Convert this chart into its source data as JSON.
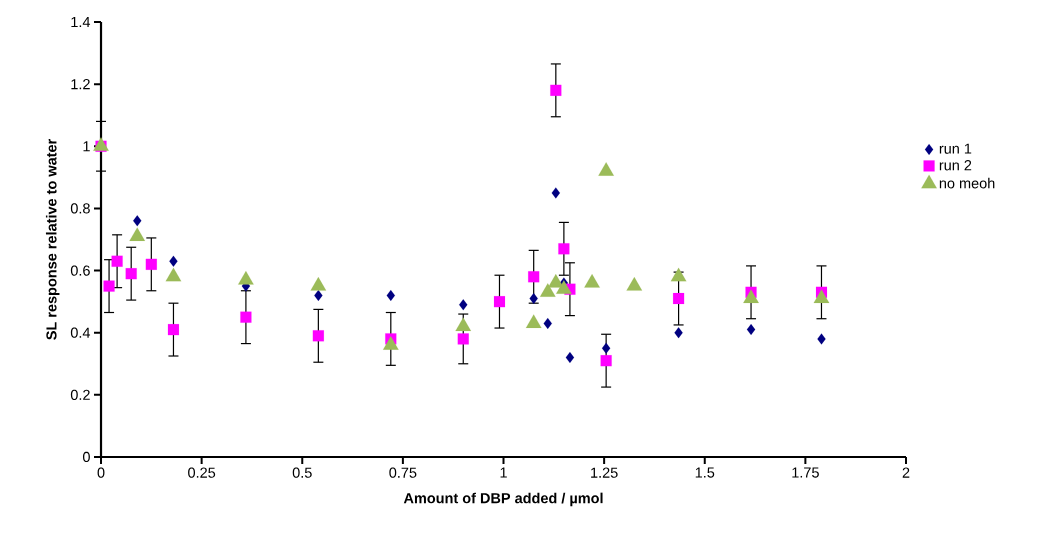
{
  "chart_data": {
    "type": "scatter",
    "xlabel": "Amount of DBP added / µmol",
    "ylabel": "SL response relative to water",
    "xlim": [
      0,
      2
    ],
    "xticks": [
      0,
      0.25,
      0.5,
      0.75,
      1,
      1.25,
      1.5,
      1.75,
      2
    ],
    "ylim": [
      0,
      1.4
    ],
    "yticks": [
      0,
      0.2,
      0.4,
      0.6,
      0.8,
      1,
      1.2,
      1.4
    ],
    "grid": false,
    "legend": "right",
    "series": [
      {
        "name": "run 1",
        "color": "#000080",
        "marker": "diamond",
        "x": [
          0.09,
          0.18,
          0.36,
          0.54,
          0.72,
          0.9,
          1.075,
          1.11,
          1.13,
          1.15,
          1.165,
          1.255,
          1.435,
          1.615,
          1.79
        ],
        "values": [
          0.76,
          0.63,
          0.55,
          0.52,
          0.52,
          0.49,
          0.51,
          0.43,
          0.85,
          0.56,
          0.32,
          0.35,
          0.4,
          0.41,
          0.38
        ]
      },
      {
        "name": "run 2",
        "color": "#ff00ff",
        "marker": "square",
        "x": [
          0,
          0.02,
          0.04,
          0.075,
          0.125,
          0.18,
          0.36,
          0.54,
          0.72,
          0.9,
          0.99,
          1.075,
          1.13,
          1.15,
          1.165,
          1.255,
          1.435,
          1.615,
          1.79
        ],
        "values": [
          1.0,
          0.55,
          0.63,
          0.59,
          0.62,
          0.41,
          0.45,
          0.39,
          0.38,
          0.38,
          0.5,
          0.58,
          1.18,
          0.67,
          0.54,
          0.31,
          0.51,
          0.53,
          0.53
        ],
        "errors": [
          0.08,
          0.085,
          0.085,
          0.085,
          0.085,
          0.085,
          0.085,
          0.085,
          0.085,
          0.08,
          0.085,
          0.085,
          0.085,
          0.085,
          0.085,
          0.085,
          0.085,
          0.085,
          0.085
        ]
      },
      {
        "name": "no meoh",
        "color": "#9bbb59",
        "marker": "triangle",
        "x": [
          0,
          0.09,
          0.18,
          0.36,
          0.54,
          0.72,
          0.9,
          1.075,
          1.11,
          1.13,
          1.15,
          1.22,
          1.255,
          1.325,
          1.435,
          1.615,
          1.79
        ],
        "values": [
          1.0,
          0.71,
          0.58,
          0.57,
          0.55,
          0.36,
          0.42,
          0.43,
          0.53,
          0.56,
          0.54,
          0.56,
          0.92,
          0.55,
          0.58,
          0.51,
          0.51
        ]
      }
    ]
  }
}
